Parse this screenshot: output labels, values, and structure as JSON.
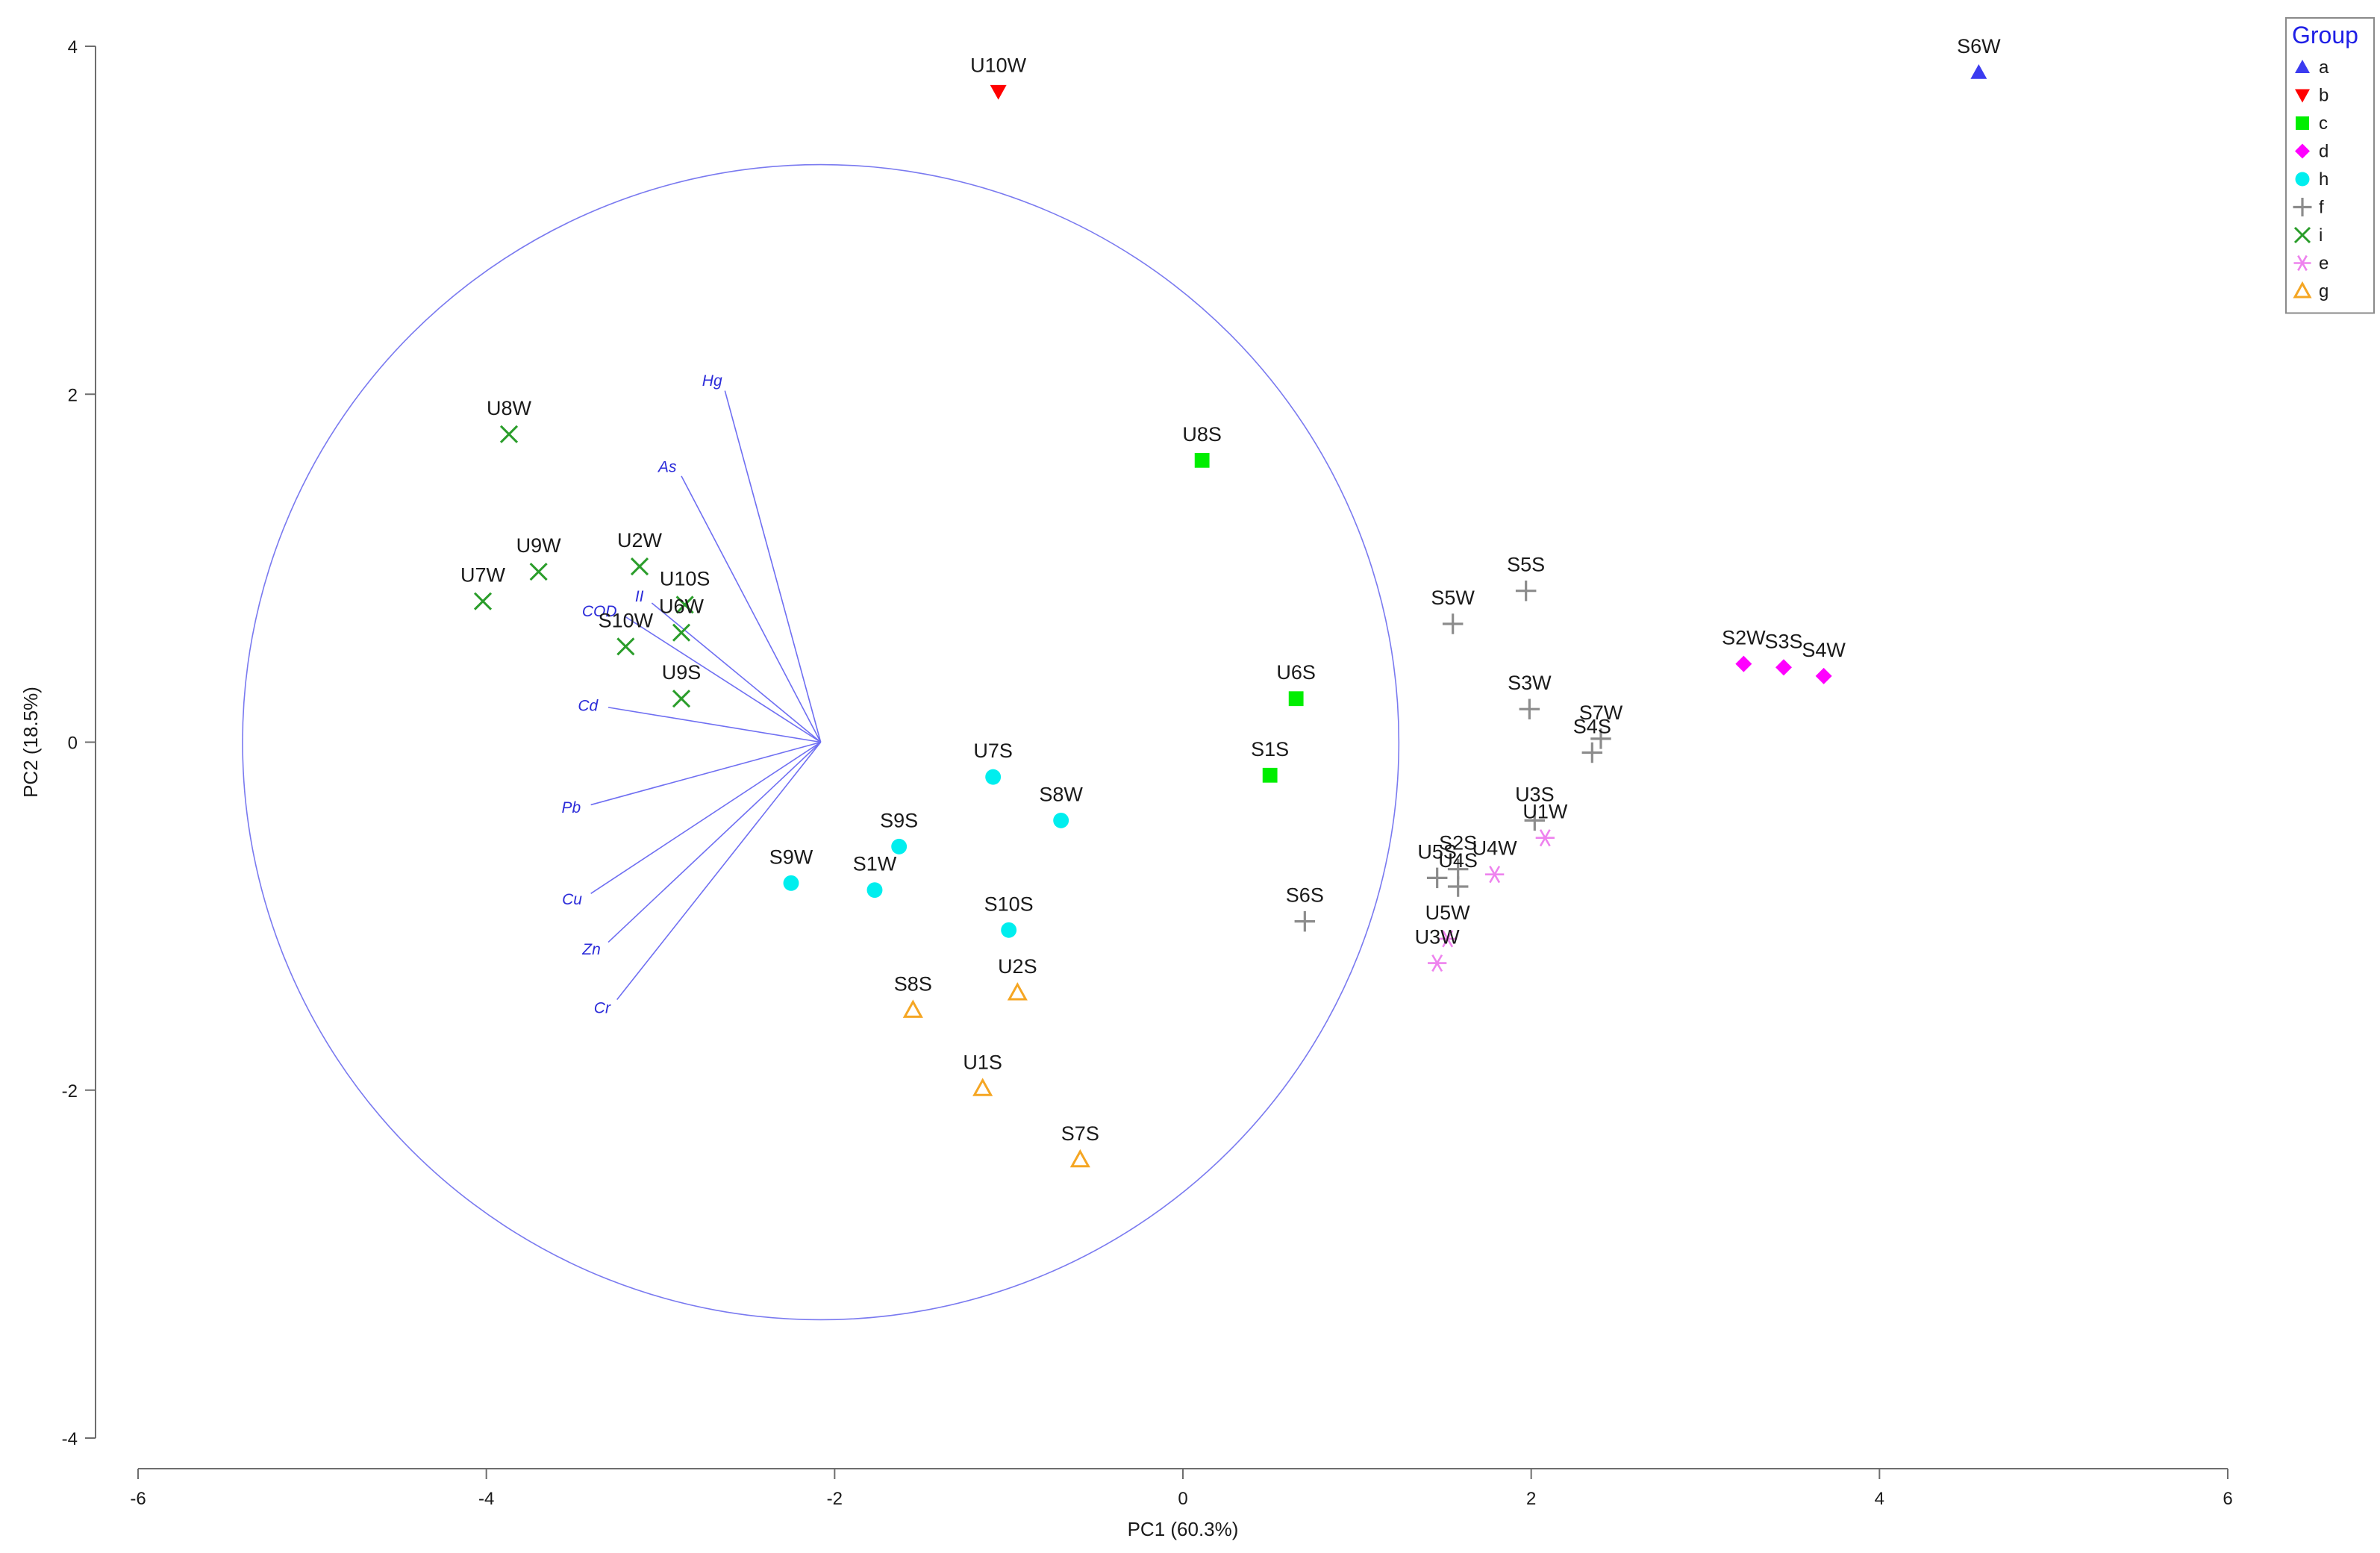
{
  "chart_data": {
    "type": "scatter",
    "title": "",
    "xlabel": "PC1 (60.3%)",
    "ylabel": "PC2 (18.5%)",
    "xlim": [
      -6,
      6
    ],
    "ylim": [
      -4,
      4
    ],
    "xticks": [
      -6,
      -4,
      -2,
      0,
      2,
      4,
      6
    ],
    "yticks": [
      -4,
      -2,
      0,
      2,
      4
    ],
    "grid": false,
    "legend": {
      "title": "Group",
      "position": "top-right",
      "entries": [
        {
          "label": "a",
          "marker": "triangle-up",
          "color": "#3b3bf0"
        },
        {
          "label": "b",
          "marker": "triangle-down",
          "color": "#ff0000"
        },
        {
          "label": "c",
          "marker": "square",
          "color": "#00ee00"
        },
        {
          "label": "d",
          "marker": "diamond",
          "color": "#ff00ff"
        },
        {
          "label": "h",
          "marker": "circle",
          "color": "#00eeee"
        },
        {
          "label": "f",
          "marker": "plus",
          "color": "#8c8c8c"
        },
        {
          "label": "i",
          "marker": "cross",
          "color": "#2a9d2a"
        },
        {
          "label": "e",
          "marker": "asterisk",
          "color": "#ee82ee"
        },
        {
          "label": "g",
          "marker": "triangle-open",
          "color": "#f5a623"
        }
      ]
    },
    "circle": {
      "center": [
        -2.08,
        0
      ],
      "radius_x": 3.32,
      "radius_y": 3.32,
      "color": "#7a7af0"
    },
    "loadings": {
      "origin": [
        -2.08,
        0
      ],
      "vectors": [
        {
          "label": "Hg",
          "end": [
            -2.63,
            2.02
          ]
        },
        {
          "label": "As",
          "end": [
            -2.88,
            1.53
          ]
        },
        {
          "label": "II",
          "end": [
            -3.05,
            0.8
          ]
        },
        {
          "label": "COD",
          "end": [
            -3.2,
            0.72
          ]
        },
        {
          "label": "Cd",
          "end": [
            -3.3,
            0.2
          ]
        },
        {
          "label": "Pb",
          "end": [
            -3.4,
            -0.36
          ]
        },
        {
          "label": "Cu",
          "end": [
            -3.4,
            -0.87
          ]
        },
        {
          "label": "Zn",
          "end": [
            -3.3,
            -1.15
          ]
        },
        {
          "label": "Cr",
          "end": [
            -3.25,
            -1.48
          ]
        }
      ]
    },
    "series": [
      {
        "name": "a",
        "points": [
          {
            "label": "S6W",
            "x": 4.57,
            "y": 3.85
          }
        ]
      },
      {
        "name": "b",
        "points": [
          {
            "label": "U10W",
            "x": -1.06,
            "y": 3.74
          }
        ]
      },
      {
        "name": "c",
        "points": [
          {
            "label": "U8S",
            "x": 0.11,
            "y": 1.62
          },
          {
            "label": "U6S",
            "x": 0.65,
            "y": 0.25
          },
          {
            "label": "S1S",
            "x": 0.5,
            "y": -0.19
          }
        ]
      },
      {
        "name": "d",
        "points": [
          {
            "label": "S2W",
            "x": 3.22,
            "y": 0.45
          },
          {
            "label": "S3S",
            "x": 3.45,
            "y": 0.43
          },
          {
            "label": "S4W",
            "x": 3.68,
            "y": 0.38
          }
        ]
      },
      {
        "name": "h",
        "points": [
          {
            "label": "U7S",
            "x": -1.09,
            "y": -0.2
          },
          {
            "label": "S8W",
            "x": -0.7,
            "y": -0.45
          },
          {
            "label": "S9S",
            "x": -1.63,
            "y": -0.6
          },
          {
            "label": "S9W",
            "x": -2.25,
            "y": -0.81
          },
          {
            "label": "S1W",
            "x": -1.77,
            "y": -0.85
          },
          {
            "label": "S10S",
            "x": -1.0,
            "y": -1.08
          }
        ]
      },
      {
        "name": "f",
        "points": [
          {
            "label": "S5S",
            "x": 1.97,
            "y": 0.87
          },
          {
            "label": "S5W",
            "x": 1.55,
            "y": 0.68
          },
          {
            "label": "S3W",
            "x": 1.99,
            "y": 0.19
          },
          {
            "label": "S7W",
            "x": 2.4,
            "y": 0.02
          },
          {
            "label": "S4S",
            "x": 2.35,
            "y": -0.06
          },
          {
            "label": "U3S",
            "x": 2.02,
            "y": -0.45
          },
          {
            "label": "U5S",
            "x": 1.46,
            "y": -0.78
          },
          {
            "label": "S2S",
            "x": 1.58,
            "y": -0.73
          },
          {
            "label": "U4S",
            "x": 1.58,
            "y": -0.83
          },
          {
            "label": "S6S",
            "x": 0.7,
            "y": -1.03
          }
        ]
      },
      {
        "name": "i",
        "points": [
          {
            "label": "U8W",
            "x": -3.87,
            "y": 1.77
          },
          {
            "label": "U9W",
            "x": -3.7,
            "y": 0.98
          },
          {
            "label": "U2W",
            "x": -3.12,
            "y": 1.01
          },
          {
            "label": "U7W",
            "x": -4.02,
            "y": 0.81
          },
          {
            "label": "U10S",
            "x": -2.86,
            "y": 0.79
          },
          {
            "label": "U6W",
            "x": -2.88,
            "y": 0.63
          },
          {
            "label": "S10W",
            "x": -3.2,
            "y": 0.55
          },
          {
            "label": "U9S",
            "x": -2.88,
            "y": 0.25
          }
        ]
      },
      {
        "name": "e",
        "points": [
          {
            "label": "U1W",
            "x": 2.08,
            "y": -0.55
          },
          {
            "label": "U4W",
            "x": 1.79,
            "y": -0.76
          },
          {
            "label": "U5W",
            "x": 1.52,
            "y": -1.13
          },
          {
            "label": "U3W",
            "x": 1.46,
            "y": -1.27
          }
        ]
      },
      {
        "name": "g",
        "points": [
          {
            "label": "S8S",
            "x": -1.55,
            "y": -1.54
          },
          {
            "label": "U2S",
            "x": -0.95,
            "y": -1.44
          },
          {
            "label": "U1S",
            "x": -1.15,
            "y": -1.99
          },
          {
            "label": "S7S",
            "x": -0.59,
            "y": -2.4
          }
        ]
      }
    ]
  }
}
